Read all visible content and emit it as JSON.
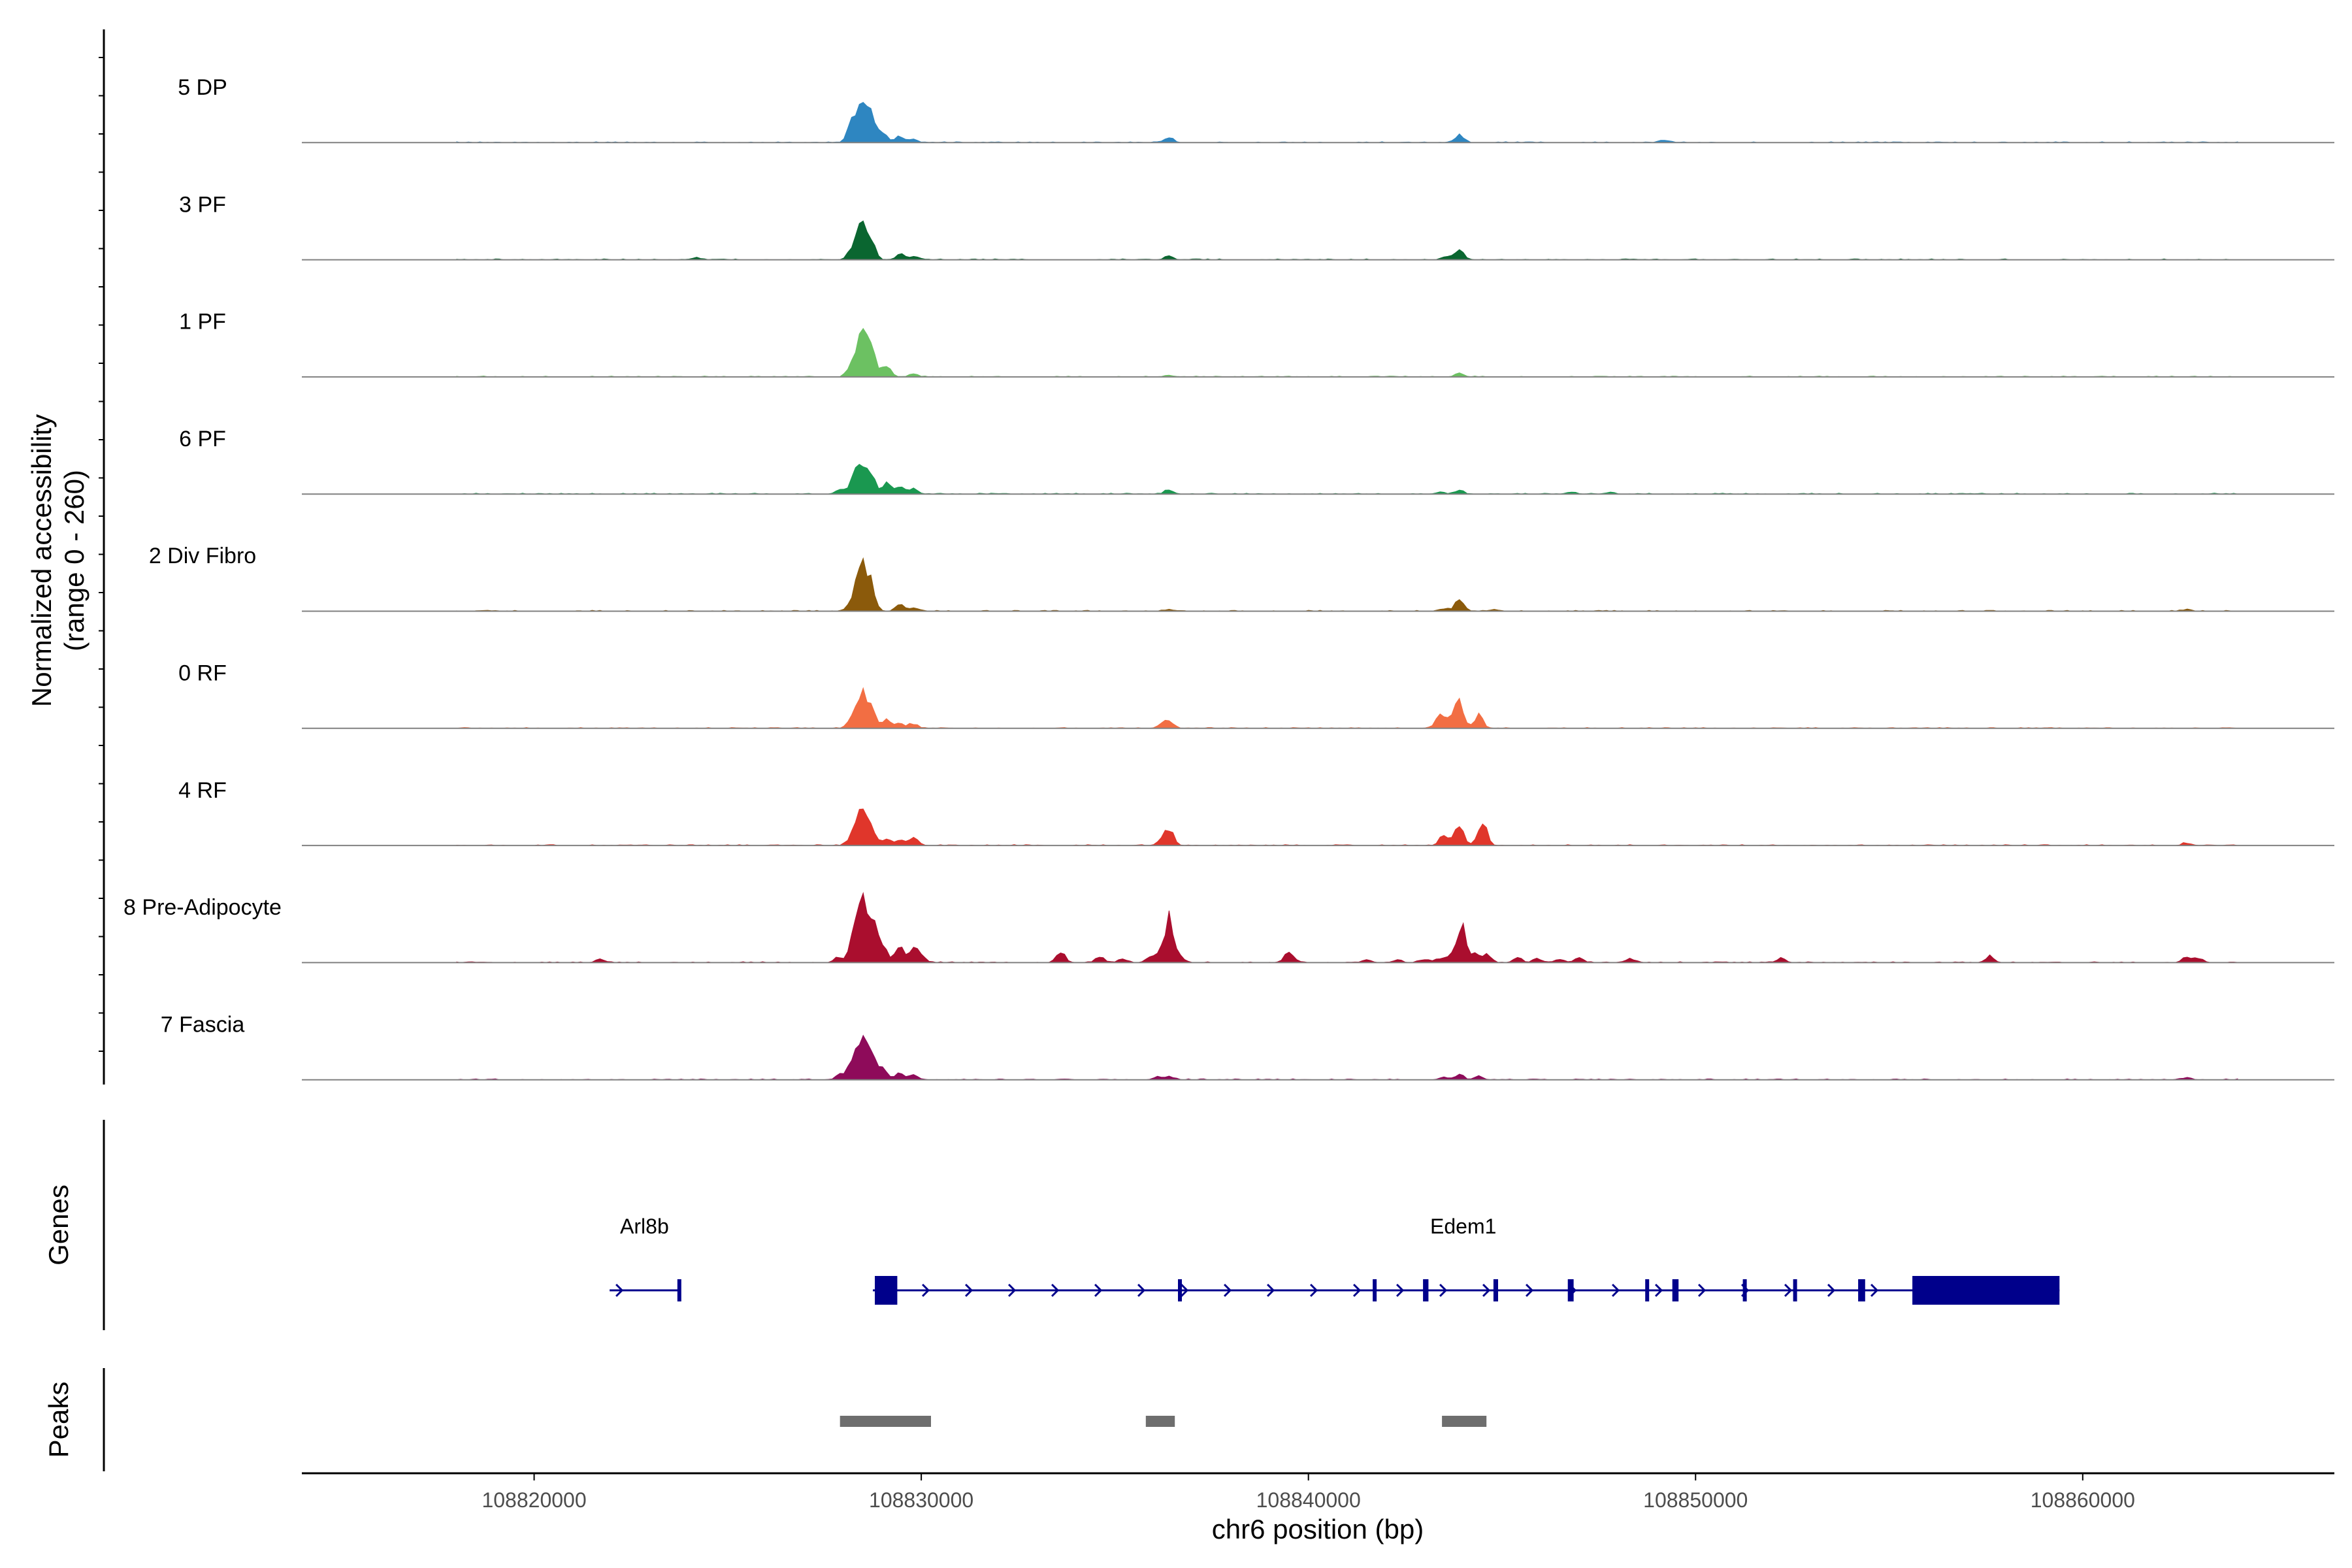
{
  "chart_data": {
    "type": "area",
    "title": "",
    "chromosome": "chr6",
    "xlabel": "chr6 position (bp)",
    "xlim": [
      108814000,
      108866500
    ],
    "xticks": [
      108820000,
      108830000,
      108840000,
      108850000,
      108860000
    ],
    "xtick_labels": [
      "108820000",
      "108830000",
      "108840000",
      "108850000",
      "108860000"
    ],
    "coverage_ylabel_line1": "Normalized accessibility",
    "coverage_ylabel_line2": "(range 0 - 260)",
    "coverage_ylim": [
      0,
      260
    ],
    "genes_ylabel": "Genes",
    "peaks_ylabel": "Peaks",
    "tracks": [
      {
        "name": "5 DP",
        "color": "#2E86C1",
        "peaks": [
          [
            108828200,
            110
          ],
          [
            108828450,
            230
          ],
          [
            108828700,
            170
          ],
          [
            108829000,
            60
          ],
          [
            108829450,
            35
          ],
          [
            108829800,
            18
          ],
          [
            108836400,
            25
          ],
          [
            108843900,
            45
          ],
          [
            108849200,
            14
          ]
        ]
      },
      {
        "name": "3 PF",
        "color": "#0A6630",
        "peaks": [
          [
            108828200,
            50
          ],
          [
            108828450,
            200
          ],
          [
            108828700,
            110
          ],
          [
            108829450,
            30
          ],
          [
            108829800,
            18
          ],
          [
            108836400,
            18
          ],
          [
            108843900,
            65
          ],
          [
            108824200,
            12
          ],
          [
            108843550,
            18
          ]
        ]
      },
      {
        "name": "1 PF",
        "color": "#6CC162",
        "peaks": [
          [
            108828200,
            70
          ],
          [
            108828450,
            250
          ],
          [
            108828700,
            180
          ],
          [
            108829100,
            70
          ],
          [
            108829800,
            18
          ],
          [
            108843900,
            20
          ],
          [
            108836400,
            10
          ]
        ]
      },
      {
        "name": "6 PF",
        "color": "#1A9850",
        "peaks": [
          [
            108827900,
            25
          ],
          [
            108828250,
            80
          ],
          [
            108828450,
            155
          ],
          [
            108828700,
            110
          ],
          [
            108829100,
            55
          ],
          [
            108829450,
            48
          ],
          [
            108829800,
            30
          ],
          [
            108836400,
            22
          ],
          [
            108843900,
            18
          ],
          [
            108843400,
            12
          ],
          [
            108846800,
            10
          ],
          [
            108847800,
            10
          ]
        ]
      },
      {
        "name": "2 Div Fibro",
        "color": "#8B5A0B",
        "peaks": [
          [
            108828200,
            60
          ],
          [
            108828450,
            290
          ],
          [
            108828700,
            150
          ],
          [
            108829450,
            40
          ],
          [
            108829800,
            16
          ],
          [
            108836400,
            10
          ],
          [
            108843900,
            65
          ],
          [
            108843500,
            15
          ],
          [
            108844800,
            10
          ],
          [
            108862700,
            10
          ]
        ]
      },
      {
        "name": "0 RF",
        "color": "#F26E43",
        "peaks": [
          [
            108828200,
            50
          ],
          [
            108828450,
            200
          ],
          [
            108828700,
            110
          ],
          [
            108829100,
            55
          ],
          [
            108829450,
            30
          ],
          [
            108829800,
            25
          ],
          [
            108836400,
            45
          ],
          [
            108836200,
            20
          ],
          [
            108843400,
            70
          ],
          [
            108843650,
            55
          ],
          [
            108843900,
            140
          ],
          [
            108844400,
            70
          ]
        ]
      },
      {
        "name": "4 RF",
        "color": "#E0362B",
        "peaks": [
          [
            108828200,
            50
          ],
          [
            108828450,
            200
          ],
          [
            108828700,
            100
          ],
          [
            108829100,
            40
          ],
          [
            108829450,
            30
          ],
          [
            108829800,
            40
          ],
          [
            108836200,
            25
          ],
          [
            108836400,
            90
          ],
          [
            108843500,
            60
          ],
          [
            108843900,
            120
          ],
          [
            108844500,
            140
          ],
          [
            108862700,
            14
          ]
        ]
      },
      {
        "name": "8 Pre-Adipocyte",
        "color": "#AA0E2E",
        "peaks": [
          [
            108821700,
            18
          ],
          [
            108827850,
            25
          ],
          [
            108828250,
            120
          ],
          [
            108828450,
            310
          ],
          [
            108828700,
            200
          ],
          [
            108828850,
            110
          ],
          [
            108829050,
            60
          ],
          [
            108829450,
            80
          ],
          [
            108829800,
            70
          ],
          [
            108830000,
            30
          ],
          [
            108833600,
            55
          ],
          [
            108834600,
            30
          ],
          [
            108835200,
            20
          ],
          [
            108835900,
            25
          ],
          [
            108836150,
            40
          ],
          [
            108836400,
            240
          ],
          [
            108836700,
            30
          ],
          [
            108839500,
            70
          ],
          [
            108841500,
            18
          ],
          [
            108842300,
            15
          ],
          [
            108843000,
            20
          ],
          [
            108843400,
            25
          ],
          [
            108843700,
            35
          ],
          [
            108843950,
            210
          ],
          [
            108844300,
            50
          ],
          [
            108844600,
            40
          ],
          [
            108845400,
            25
          ],
          [
            108845900,
            20
          ],
          [
            108846500,
            20
          ],
          [
            108847000,
            25
          ],
          [
            108848300,
            25
          ],
          [
            108852200,
            25
          ],
          [
            108857600,
            35
          ],
          [
            108862700,
            35
          ],
          [
            108863000,
            25
          ]
        ]
      },
      {
        "name": "7 Fascia",
        "color": "#8E0B5A",
        "peaks": [
          [
            108827900,
            25
          ],
          [
            108828200,
            90
          ],
          [
            108828450,
            230
          ],
          [
            108828700,
            150
          ],
          [
            108829000,
            60
          ],
          [
            108829450,
            35
          ],
          [
            108829800,
            25
          ],
          [
            108836400,
            22
          ],
          [
            108836100,
            15
          ],
          [
            108843500,
            15
          ],
          [
            108843900,
            30
          ],
          [
            108844400,
            20
          ],
          [
            108862700,
            12
          ]
        ]
      }
    ],
    "genes": [
      {
        "name": "Arl8b",
        "start": 108821950,
        "end": 108823750,
        "strand": "+",
        "exons": [
          [
            108823700,
            108823750
          ]
        ]
      },
      {
        "name": "Edem1",
        "start": 108828750,
        "end": 108859400,
        "strand": "+",
        "exons": [
          [
            108828800,
            108829380
          ],
          [
            108836630,
            108836660
          ],
          [
            108841660,
            108841720
          ],
          [
            108842960,
            108843100
          ],
          [
            108844780,
            108844900
          ],
          [
            108846700,
            108846850
          ],
          [
            108848700,
            108848780
          ],
          [
            108849400,
            108849560
          ],
          [
            108851220,
            108851250
          ],
          [
            108852520,
            108852580
          ],
          [
            108854200,
            108854380
          ],
          [
            108855600,
            108859400
          ]
        ]
      }
    ],
    "peaks_regions": [
      [
        108827900,
        108830250
      ],
      [
        108835800,
        108836550
      ],
      [
        108843450,
        108844600
      ]
    ]
  }
}
